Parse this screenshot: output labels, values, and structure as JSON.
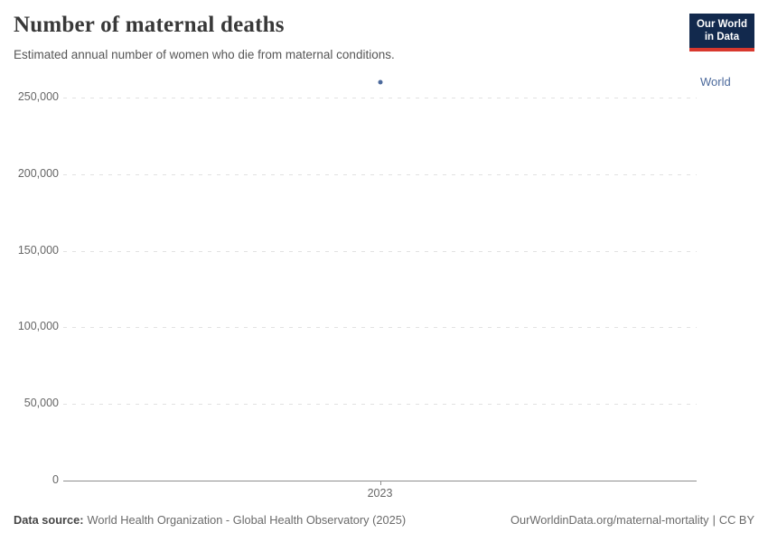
{
  "header": {
    "title": "Number of maternal deaths",
    "subtitle": "Estimated annual number of women who die from maternal conditions."
  },
  "logo": {
    "name": "our-world-in-data-logo",
    "line1": "Our World",
    "line2": "in Data",
    "bg_color": "#12294d",
    "accent_color": "#d8382e"
  },
  "chart_data": {
    "type": "scatter",
    "title": "Number of maternal deaths",
    "subtitle": "Estimated annual number of women who die from maternal conditions.",
    "xlabel": "",
    "ylabel": "",
    "x": [
      2023
    ],
    "x_tick_labels": [
      "2023"
    ],
    "series": [
      {
        "name": "World",
        "color": "#4c6a9c",
        "points": [
          {
            "x": 2023,
            "y": 260000
          }
        ]
      }
    ],
    "y_ticks": [
      0,
      50000,
      100000,
      150000,
      200000,
      250000
    ],
    "y_tick_labels": [
      "0",
      "50,000",
      "100,000",
      "150,000",
      "200,000",
      "250,000"
    ],
    "ylim": [
      0,
      250000
    ],
    "grid": "horizontal-dashed",
    "legend_position": "right-of-point"
  },
  "footer": {
    "datasource_label": "Data source:",
    "datasource_text": "World Health Organization - Global Health Observatory (2025)",
    "url_text": "OurWorldinData.org/maternal-mortality",
    "separator": "|",
    "license_text": "CC BY"
  }
}
